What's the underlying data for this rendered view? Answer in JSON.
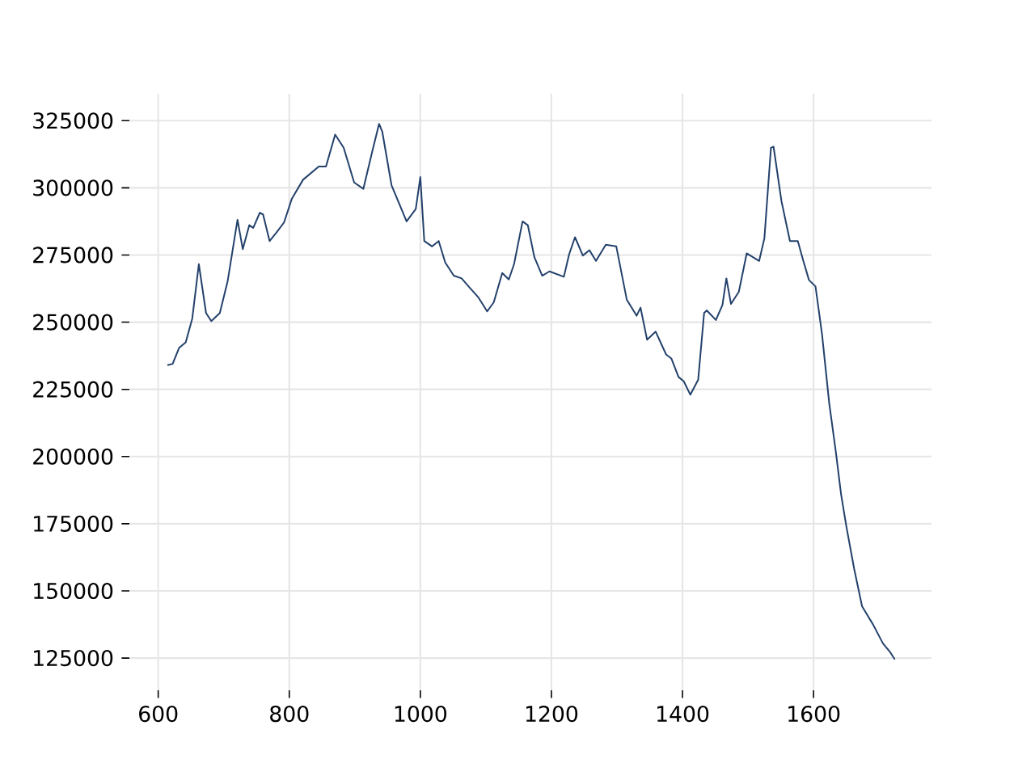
{
  "chart_data": {
    "type": "line",
    "color": "#23416b",
    "grid": true,
    "xlim": [
      556,
      1780
    ],
    "ylim": [
      113000,
      335000
    ],
    "xticks": [
      600,
      800,
      1000,
      1200,
      1400,
      1600
    ],
    "yticks": [
      125000,
      150000,
      175000,
      200000,
      225000,
      250000,
      275000,
      300000,
      325000
    ],
    "x": [
      614,
      622,
      632,
      642,
      652,
      662,
      667,
      673,
      681,
      694,
      706,
      721,
      729,
      739,
      745,
      755,
      760,
      770,
      780,
      792,
      804,
      821,
      845,
      856,
      870,
      883,
      899,
      913,
      926,
      937,
      942,
      956,
      979,
      993,
      1000,
      1006,
      1018,
      1028,
      1038,
      1051,
      1063,
      1075,
      1088,
      1102,
      1112,
      1125,
      1135,
      1143,
      1156,
      1164,
      1174,
      1186,
      1197,
      1219,
      1227,
      1236,
      1248,
      1258,
      1268,
      1283,
      1299,
      1315,
      1330,
      1336,
      1346,
      1359,
      1375,
      1383,
      1394,
      1402,
      1412,
      1424,
      1433,
      1437,
      1451,
      1461,
      1467,
      1474,
      1486,
      1498,
      1517,
      1525,
      1535,
      1539,
      1551,
      1564,
      1576,
      1584,
      1593,
      1603,
      1613,
      1624,
      1634,
      1642,
      1650,
      1662,
      1674,
      1691,
      1706,
      1716,
      1724
    ],
    "values": [
      234000,
      234500,
      240500,
      242500,
      251400,
      271600,
      263300,
      253400,
      250400,
      253400,
      265300,
      288100,
      277200,
      286100,
      285100,
      290700,
      290100,
      280200,
      283200,
      287100,
      296000,
      303000,
      307900,
      307900,
      319800,
      314900,
      302000,
      299600,
      312900,
      323800,
      320800,
      301000,
      287500,
      292100,
      304000,
      280200,
      278200,
      280200,
      272200,
      267300,
      266300,
      262900,
      259400,
      254000,
      257400,
      268300,
      265900,
      271600,
      287500,
      286100,
      274200,
      267300,
      268900,
      266900,
      275200,
      281600,
      274800,
      276800,
      272800,
      278800,
      278200,
      258400,
      252400,
      255400,
      243500,
      246500,
      238000,
      236500,
      229600,
      228000,
      223000,
      228600,
      253400,
      254400,
      250800,
      256400,
      266300,
      256800,
      261300,
      275600,
      272800,
      281200,
      314900,
      315300,
      295100,
      280200,
      280200,
      273200,
      265700,
      263300,
      245400,
      219700,
      201800,
      186000,
      174100,
      158200,
      144300,
      137400,
      130400,
      127500,
      124500
    ]
  }
}
